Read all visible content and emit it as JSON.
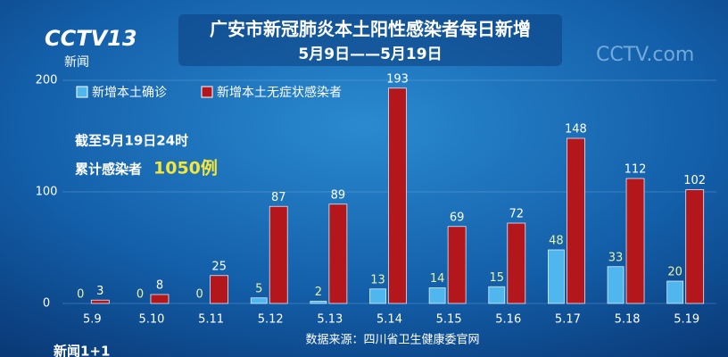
{
  "chart_data": {
    "type": "bar",
    "title": "广安市新冠肺炎本土阳性感染者每日新增",
    "subtitle": "5月9日——5月19日",
    "categories": [
      "5.9",
      "5.10",
      "5.11",
      "5.12",
      "5.13",
      "5.14",
      "5.15",
      "5.16",
      "5.17",
      "5.18",
      "5.19"
    ],
    "series": [
      {
        "name": "新增本土确诊",
        "color": "#4fb6ee",
        "values": [
          0,
          0,
          0,
          5,
          2,
          13,
          14,
          15,
          48,
          33,
          20
        ]
      },
      {
        "name": "新增本土无症状感染者",
        "color": "#b3171b",
        "values": [
          3,
          8,
          25,
          87,
          89,
          193,
          69,
          72,
          148,
          112,
          102
        ]
      }
    ],
    "ylim": [
      0,
      200
    ],
    "yticks": [
      0,
      100,
      200
    ],
    "grid": true,
    "annotations": [
      "截至5月19日24时",
      "累计感染者",
      "1050例"
    ],
    "source": "数据来源：四川省卫生健康委官网",
    "logos": [
      "CCTV13",
      "新闻",
      "CCTV.com",
      "新闻1+1"
    ]
  }
}
